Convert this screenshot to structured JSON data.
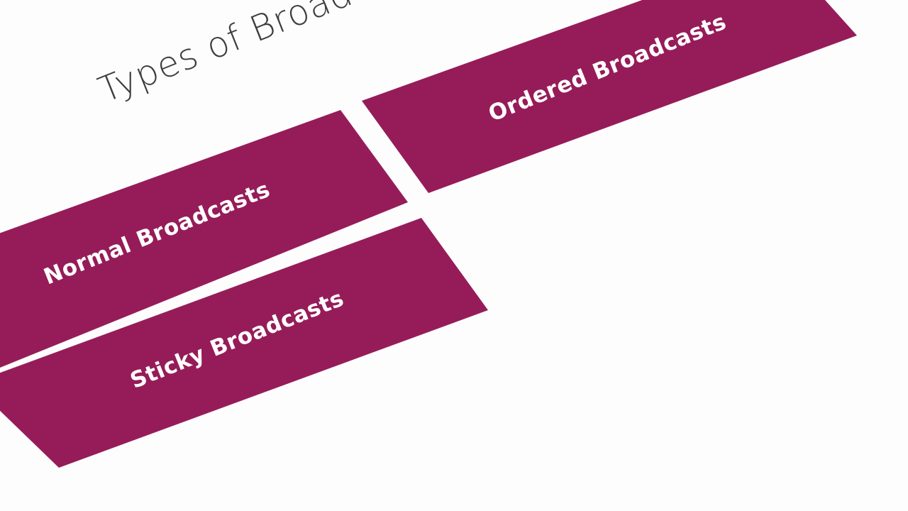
{
  "slide": {
    "title": "Types of Broadcasts",
    "background_color": "#fdfdfd",
    "title_color": "#3e3e3e",
    "card_color": "#961c59",
    "card_text_color": "#ffffff"
  },
  "cards": [
    {
      "label": "Normal Broadcasts"
    },
    {
      "label": "Ordered Broadcasts"
    },
    {
      "label": "Sticky Broadcasts"
    }
  ]
}
